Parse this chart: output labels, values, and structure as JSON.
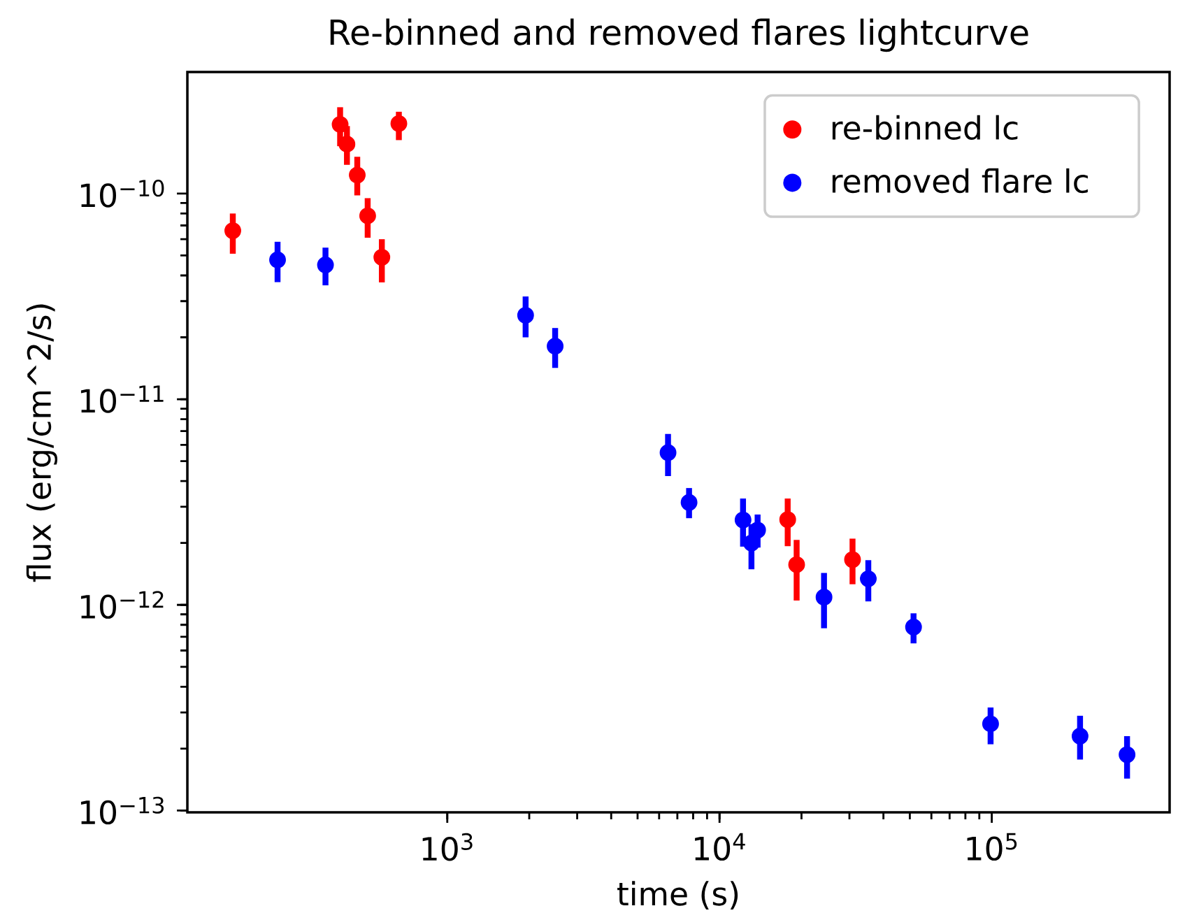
{
  "chart_data": {
    "type": "scatter",
    "title": "Re-binned and removed flares lightcurve",
    "xlabel": "time (s)",
    "ylabel": "flux (erg/cm^2/s)",
    "log": "xy",
    "xlim": [
      111,
      450000
    ],
    "ylim": [
      9.8e-14,
      3.9e-10
    ],
    "xticks": [
      {
        "value": 1000,
        "label": "10$^{3}$"
      },
      {
        "value": 10000,
        "label": "10$^{4}$"
      },
      {
        "value": 100000,
        "label": "10$^{5}$"
      }
    ],
    "yticks": [
      {
        "value": 1e-13,
        "label": "10$^{−13}$"
      },
      {
        "value": 1e-12,
        "label": "10$^{−12}$"
      },
      {
        "value": 1e-11,
        "label": "10$^{−11}$"
      },
      {
        "value": 1e-10,
        "label": "10$^{−10}$"
      }
    ],
    "legend": "top right",
    "marker": "circle",
    "grid": false,
    "series": [
      {
        "name": "re-binned lc",
        "color": "#ff0000",
        "x": [
          163,
          404,
          428,
          467,
          510,
          575,
          664,
          17800,
          19200,
          30800
        ],
        "values": [
          6.6e-11,
          2.17e-10,
          1.74e-10,
          1.23e-10,
          7.8e-11,
          4.9e-11,
          2.19e-10,
          2.6e-12,
          1.57e-12,
          1.66e-12
        ],
        "errors": [
          [
            5.1e-11,
            8e-11
          ],
          [
            1.7e-10,
            2.63e-10
          ],
          [
            1.38e-10,
            2.13e-10
          ],
          [
            9.8e-11,
            1.51e-10
          ],
          [
            6.1e-11,
            9.5e-11
          ],
          [
            3.7e-11,
            6e-11
          ],
          [
            1.82e-10,
            2.5e-10
          ],
          [
            1.93e-12,
            3.29e-12
          ],
          [
            1.05e-12,
            2.07e-12
          ],
          [
            1.26e-12,
            2.1e-12
          ]
        ]
      },
      {
        "name": "removed flare lc",
        "color": "#0000ff",
        "x": [
          238,
          357,
          1940,
          2490,
          6470,
          7730,
          12200,
          13100,
          13800,
          24200,
          35200,
          51600,
          99000,
          211000,
          314000
        ],
        "values": [
          4.76e-11,
          4.5e-11,
          2.56e-11,
          1.81e-11,
          5.5e-12,
          3.15e-12,
          2.59e-12,
          2e-12,
          2.31e-12,
          1.09e-12,
          1.34e-12,
          7.8e-13,
          2.64e-13,
          2.3e-13,
          1.87e-13
        ],
        "errors": [
          [
            3.71e-11,
            5.83e-11
          ],
          [
            3.58e-11,
            5.46e-11
          ],
          [
            2e-11,
            3.16e-11
          ],
          [
            1.42e-11,
            2.22e-11
          ],
          [
            4.23e-12,
            6.78e-12
          ],
          [
            2.64e-12,
            3.7e-12
          ],
          [
            1.92e-12,
            3.29e-12
          ],
          [
            1.49e-12,
            2.47e-12
          ],
          [
            1.9e-12,
            2.75e-12
          ],
          [
            7.7e-13,
            1.43e-12
          ],
          [
            1.04e-12,
            1.65e-12
          ],
          [
            6.5e-13,
            9.1e-13
          ],
          [
            2.1e-13,
            3.17e-13
          ],
          [
            1.77e-13,
            2.89e-13
          ],
          [
            1.43e-13,
            2.3e-13
          ]
        ]
      }
    ]
  }
}
